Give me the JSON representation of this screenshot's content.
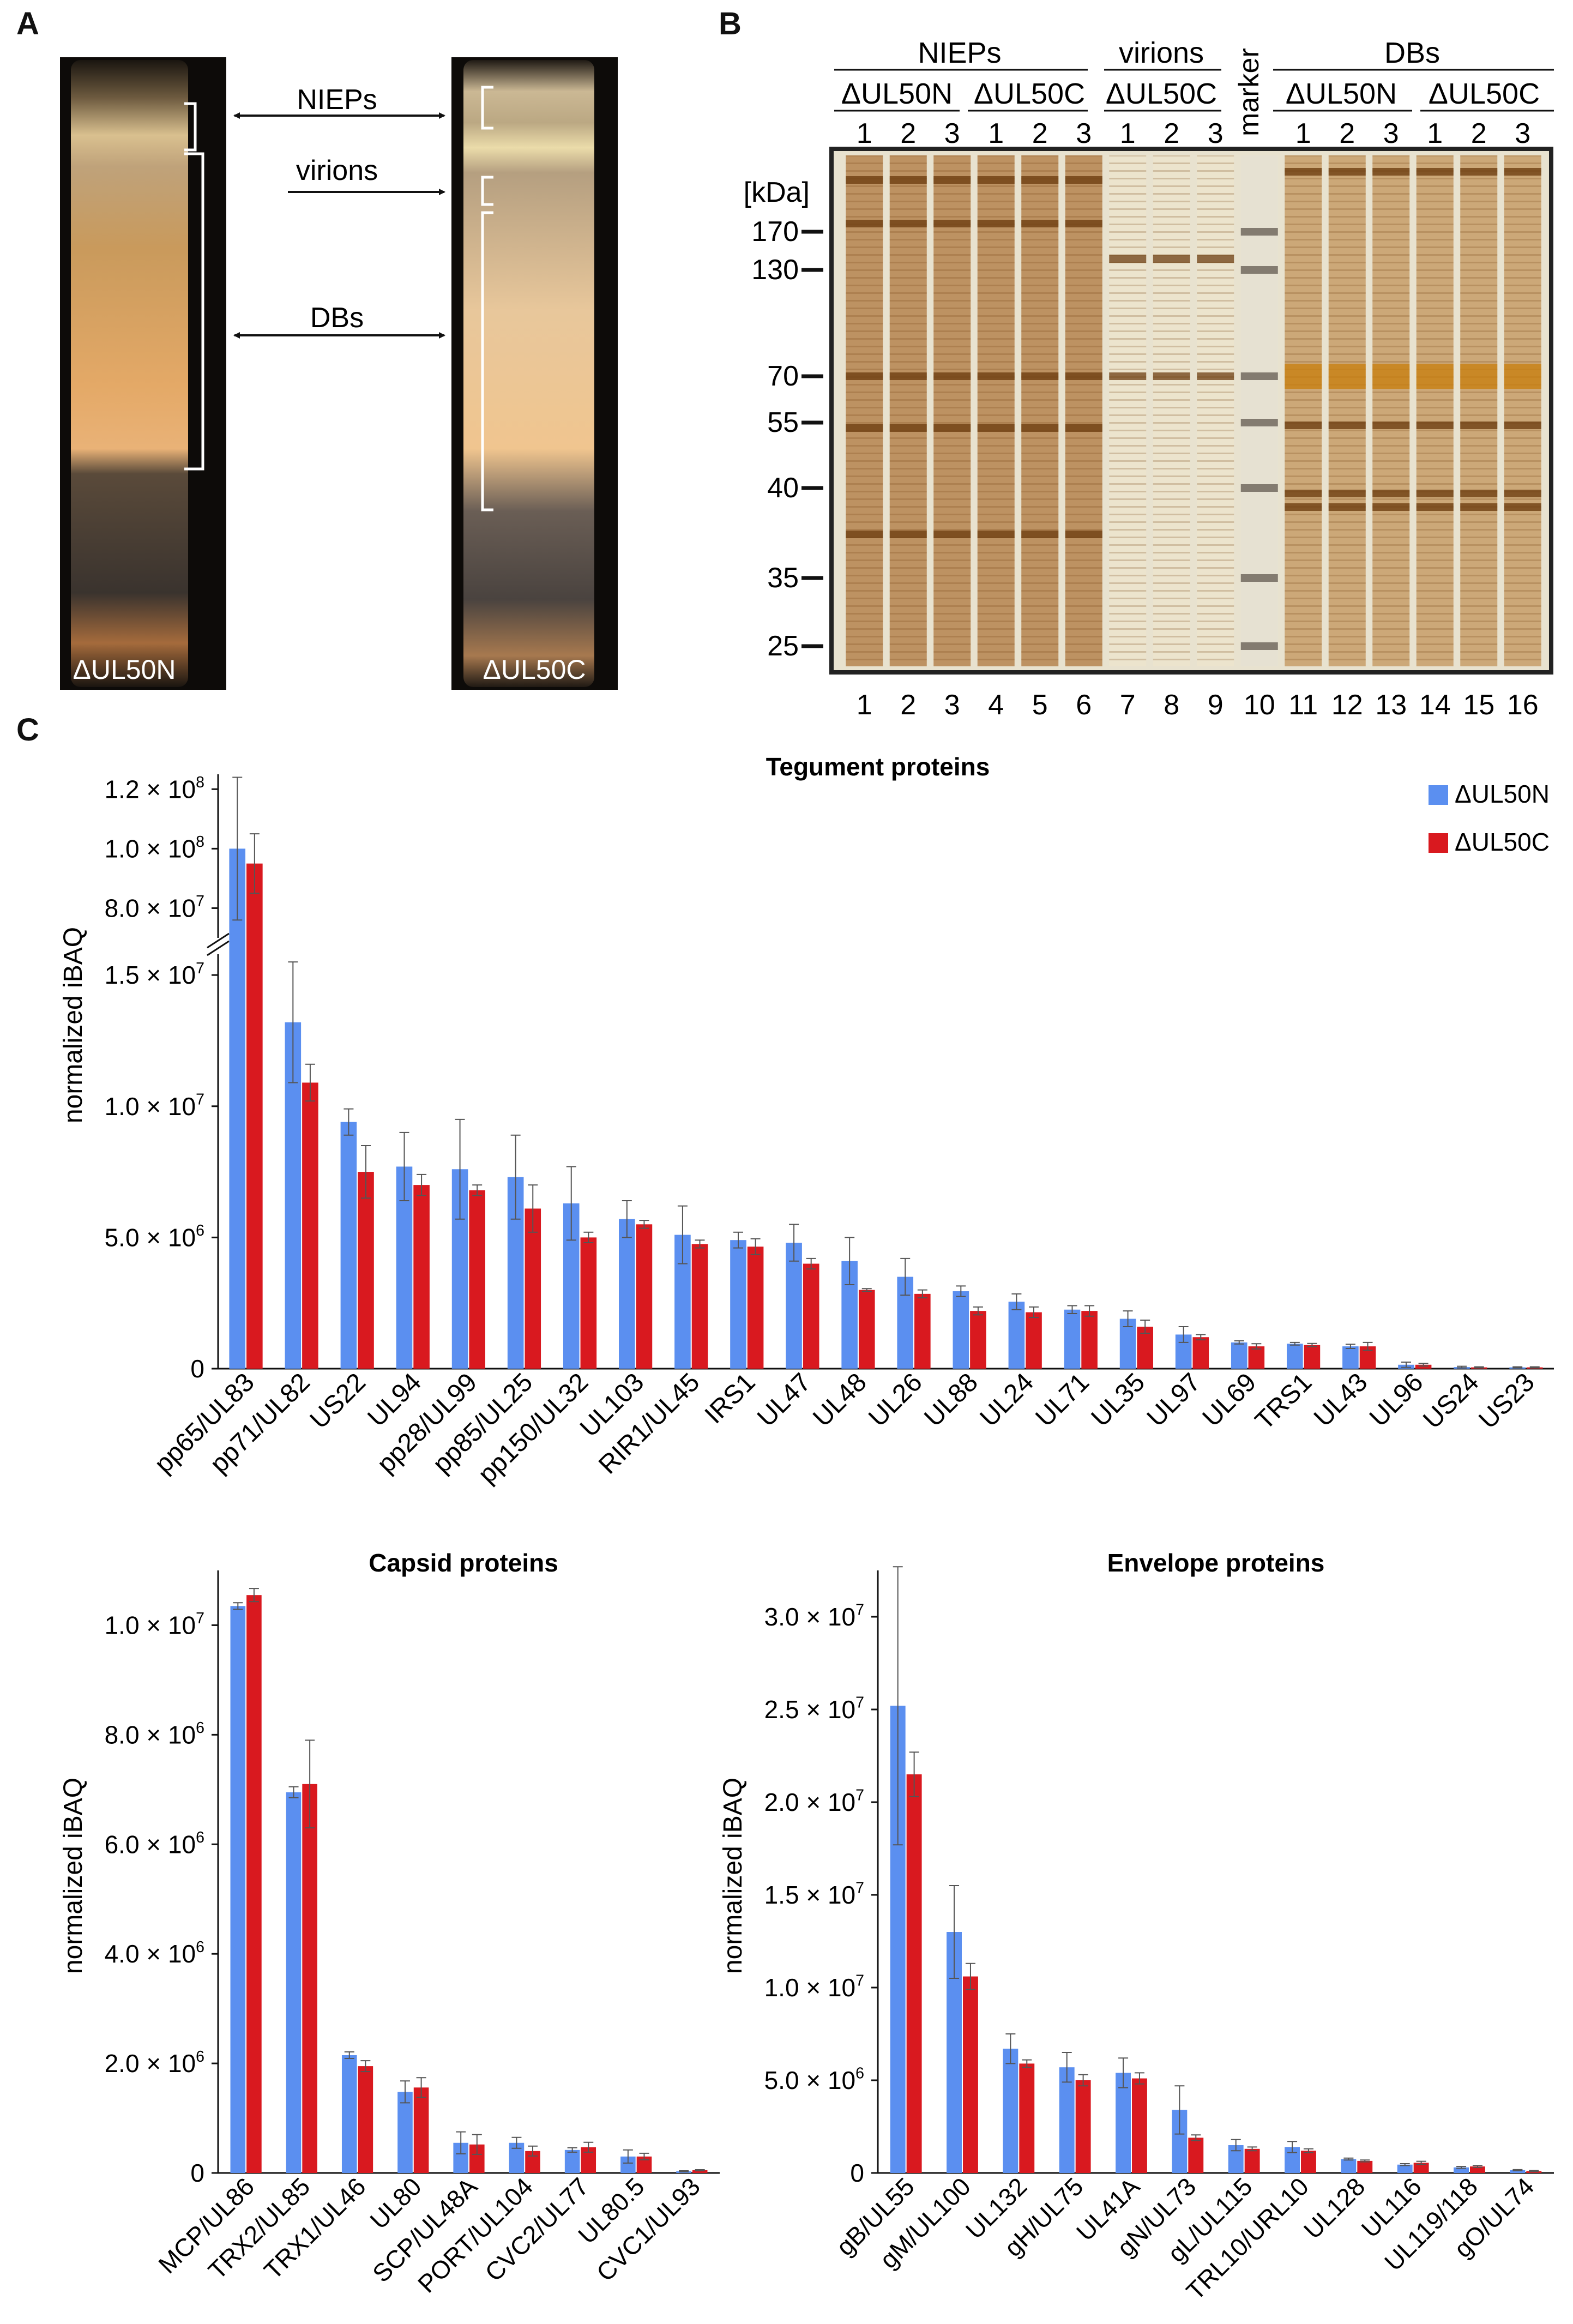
{
  "panels": {
    "a": "A",
    "b": "B",
    "c": "C"
  },
  "panel_a": {
    "tube_left_label": "ΔUL50N",
    "tube_right_label": "ΔUL50C",
    "bands": [
      "NIEPs",
      "virions",
      "DBs"
    ]
  },
  "panel_b": {
    "groups": [
      {
        "name": "NIEPs",
        "subgroups": [
          "ΔUL50N",
          "ΔUL50C"
        ]
      },
      {
        "name": "virions",
        "subgroups": [
          "ΔUL50C"
        ]
      },
      {
        "name": "DBs",
        "subgroups": [
          "ΔUL50N",
          "ΔUL50C"
        ]
      }
    ],
    "replicates": [
      "1",
      "2",
      "3",
      "1",
      "2",
      "3",
      "1",
      "2",
      "3",
      "1",
      "2",
      "3",
      "1",
      "2",
      "3"
    ],
    "marker_label": "marker",
    "unit_label": "[kDa]",
    "marker_sizes": [
      "170",
      "130",
      "70",
      "55",
      "40",
      "35",
      "25"
    ],
    "lane_numbers": [
      "1",
      "2",
      "3",
      "4",
      "5",
      "6",
      "7",
      "8",
      "9",
      "10",
      "11",
      "12",
      "13",
      "14",
      "15",
      "16"
    ]
  },
  "legend": {
    "series_a": "ΔUL50N",
    "series_b": "ΔUL50C"
  },
  "colors": {
    "series_a": "#5b8ff0",
    "series_b": "#d9191f"
  },
  "chart_data": [
    {
      "type": "bar",
      "title": "Tegument proteins",
      "ylabel": "normalized iBAQ",
      "broken_axis": true,
      "ylim_lower": [
        0,
        16000000
      ],
      "ylim_upper": [
        70000000,
        125000000
      ],
      "yticks_lower": [
        "0",
        "5.0 × 10",
        "1.0 × 10",
        "1.5 × 10"
      ],
      "yticks_lower_exp": [
        "",
        "6",
        "7",
        "7"
      ],
      "yticks_upper": [
        "8.0 × 10",
        "1.0 × 10",
        "1.2 × 10"
      ],
      "yticks_upper_exp": [
        "7",
        "8",
        "8"
      ],
      "categories": [
        "pp65/UL83",
        "pp71/UL82",
        "US22",
        "UL94",
        "pp28/UL99",
        "pp85/UL25",
        "pp150/UL32",
        "UL103",
        "RIR1/UL45",
        "IRS1",
        "UL47",
        "UL48",
        "UL26",
        "UL88",
        "UL24",
        "UL71",
        "UL35",
        "UL97",
        "UL69",
        "TRS1",
        "UL43",
        "UL96",
        "US24",
        "US23"
      ],
      "series": [
        {
          "name": "ΔUL50N",
          "values": [
            100000000,
            13200000,
            9400000,
            7700000,
            7600000,
            7300000,
            6300000,
            5700000,
            5100000,
            4900000,
            4800000,
            4100000,
            3500000,
            2950000,
            2550000,
            2250000,
            1900000,
            1300000,
            1000000,
            950000,
            850000,
            150000,
            60000,
            50000
          ],
          "errors": [
            24000000,
            2300000,
            500000,
            1300000,
            1900000,
            1600000,
            1400000,
            700000,
            1100000,
            300000,
            700000,
            900000,
            700000,
            200000,
            300000,
            150000,
            300000,
            300000,
            60000,
            50000,
            80000,
            100000,
            30000,
            20000
          ]
        },
        {
          "name": "ΔUL50C",
          "values": [
            95000000,
            10900000,
            7500000,
            7000000,
            6800000,
            6100000,
            5000000,
            5500000,
            4750000,
            4650000,
            4000000,
            3000000,
            2850000,
            2200000,
            2150000,
            2200000,
            1600000,
            1200000,
            850000,
            900000,
            850000,
            150000,
            50000,
            50000
          ],
          "errors": [
            10000000,
            700000,
            1000000,
            400000,
            200000,
            900000,
            200000,
            150000,
            150000,
            300000,
            200000,
            50000,
            150000,
            150000,
            200000,
            200000,
            250000,
            100000,
            100000,
            60000,
            150000,
            50000,
            20000,
            20000
          ]
        }
      ]
    },
    {
      "type": "bar",
      "title": "Capsid proteins",
      "ylabel": "normalized iBAQ",
      "ylim": [
        0,
        11000000
      ],
      "yticks": [
        "0",
        "2.0 × 10",
        "4.0 × 10",
        "6.0 × 10",
        "8.0 × 10",
        "1.0 × 10"
      ],
      "yticks_exp": [
        "",
        "6",
        "6",
        "6",
        "6",
        "7"
      ],
      "categories": [
        "MCP/UL86",
        "TRX2/UL85",
        "TRX1/UL46",
        "UL80",
        "SCP/UL48A",
        "PORT/UL104",
        "CVC2/UL77",
        "UL80.5",
        "CVC1/UL93"
      ],
      "series": [
        {
          "name": "ΔUL50N",
          "values": [
            10350000,
            6950000,
            2150000,
            1480000,
            550000,
            550000,
            420000,
            300000,
            30000
          ],
          "errors": [
            60000,
            100000,
            60000,
            200000,
            200000,
            100000,
            40000,
            120000,
            10000
          ]
        },
        {
          "name": "ΔUL50C",
          "values": [
            10550000,
            7100000,
            1950000,
            1560000,
            520000,
            400000,
            470000,
            300000,
            50000
          ],
          "errors": [
            120000,
            800000,
            100000,
            180000,
            180000,
            90000,
            90000,
            60000,
            10000
          ]
        }
      ]
    },
    {
      "type": "bar",
      "title": "Envelope proteins",
      "ylabel": "normalized iBAQ",
      "ylim": [
        0,
        32500000
      ],
      "yticks": [
        "0",
        "5.0 × 10",
        "1.0 × 10",
        "1.5 × 10",
        "2.0 × 10",
        "2.5 × 10",
        "3.0 × 10"
      ],
      "yticks_exp": [
        "",
        "6",
        "7",
        "7",
        "7",
        "7",
        "7"
      ],
      "categories": [
        "gB/UL55",
        "gM/UL100",
        "UL132",
        "gH/UL75",
        "UL41A",
        "gN/UL73",
        "gL/UL115",
        "TRL10/URL10",
        "UL128",
        "UL116",
        "UL119/118",
        "gO/UL74"
      ],
      "series": [
        {
          "name": "ΔUL50N",
          "values": [
            25200000,
            13000000,
            6700000,
            5700000,
            5400000,
            3400000,
            1500000,
            1400000,
            750000,
            450000,
            300000,
            150000
          ],
          "errors": [
            7500000,
            2500000,
            800000,
            800000,
            800000,
            1300000,
            300000,
            300000,
            50000,
            50000,
            50000,
            30000
          ]
        },
        {
          "name": "ΔUL50C",
          "values": [
            21500000,
            10600000,
            5900000,
            5000000,
            5100000,
            1900000,
            1300000,
            1200000,
            650000,
            550000,
            350000,
            100000
          ],
          "errors": [
            1200000,
            700000,
            200000,
            300000,
            300000,
            150000,
            100000,
            100000,
            50000,
            80000,
            50000,
            30000
          ]
        }
      ]
    }
  ]
}
